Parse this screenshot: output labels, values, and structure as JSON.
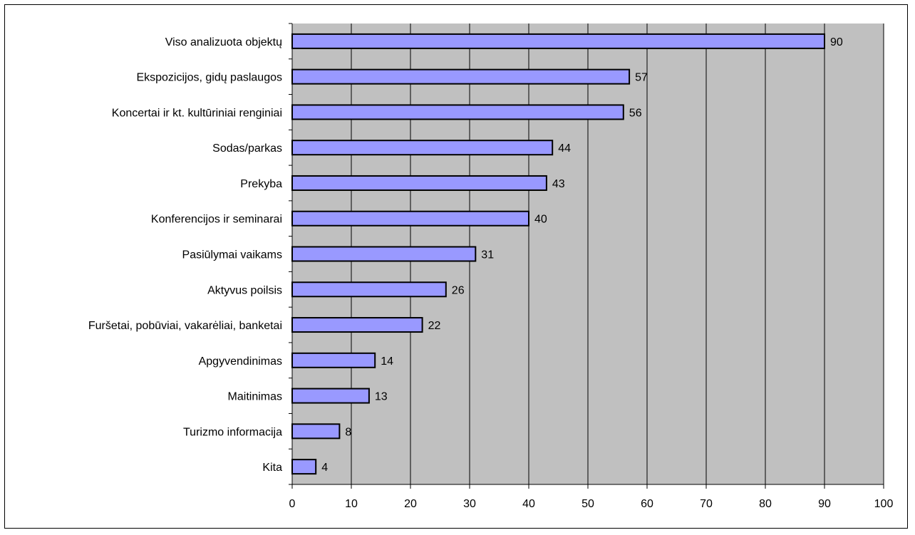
{
  "chart_data": {
    "type": "bar",
    "orientation": "horizontal",
    "title": "",
    "xlabel": "",
    "ylabel": "",
    "categories": [
      "Viso analizuota objektų",
      "Ekspozicijos, gidų paslaugos",
      "Koncertai ir kt. kultūriniai renginiai",
      "Sodas/parkas",
      "Prekyba",
      "Konferencijos ir seminarai",
      "Pasiūlymai vaikams",
      "Aktyvus poilsis",
      "Furšetai, pobūviai, vakarėliai, banketai",
      "Apgyvendinimas",
      "Maitinimas",
      "Turizmo informacija",
      "Kita"
    ],
    "values": [
      90,
      57,
      56,
      44,
      43,
      40,
      31,
      26,
      22,
      14,
      13,
      8,
      4
    ],
    "xlim": [
      0,
      100
    ],
    "xticks": [
      0,
      10,
      20,
      30,
      40,
      50,
      60,
      70,
      80,
      90,
      100
    ],
    "grid": "vertical",
    "legend": "none",
    "colors": {
      "bar_fill": "#9999ff",
      "bar_stroke": "#000000",
      "plot_background": "#c0c0c0",
      "gridline": "#000000"
    }
  }
}
